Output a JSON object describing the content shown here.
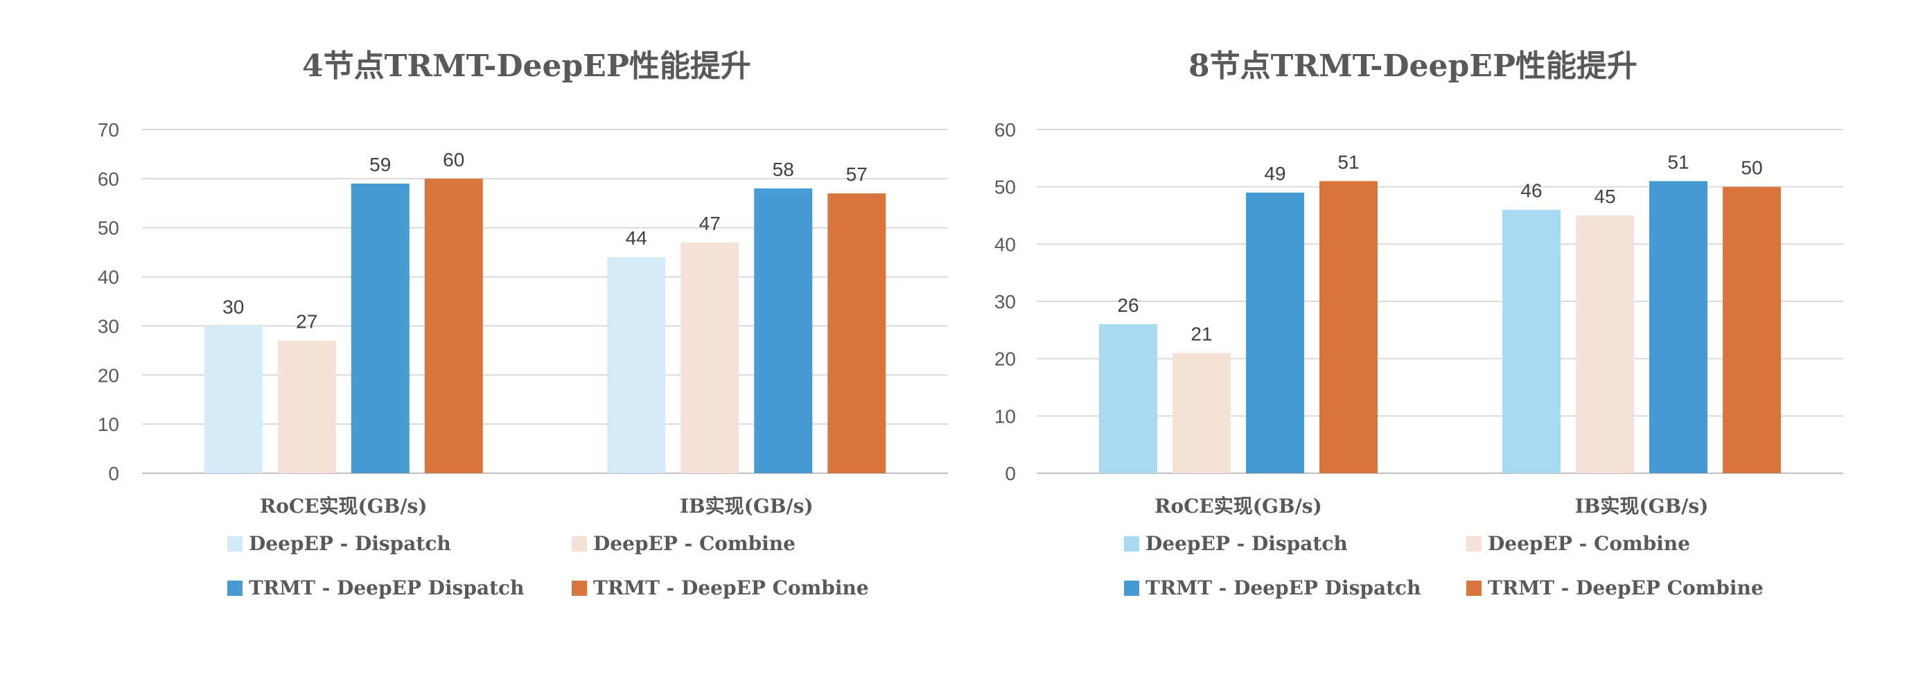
{
  "chart_data": [
    {
      "type": "bar",
      "title": "4节点TRMT-DeepEP性能提升",
      "xlabel": "",
      "ylabel": "",
      "ylim": [
        0,
        70
      ],
      "yticks": [
        0,
        10,
        20,
        30,
        40,
        50,
        60,
        70
      ],
      "grid": true,
      "legend_position": "bottom",
      "categories": [
        "RoCE实现(GB/s)",
        "IB实现(GB/s)"
      ],
      "series": [
        {
          "name": "DeepEP - Dispatch",
          "color": "#d3ebf7",
          "values": [
            30,
            44
          ]
        },
        {
          "name": "DeepEP - Combine",
          "color": "#f6e1d7",
          "values": [
            27,
            47
          ]
        },
        {
          "name": "TRMT - DeepEP Dispatch",
          "color": "#459bd2",
          "values": [
            59,
            58
          ]
        },
        {
          "name": "TRMT - DeepEP Combine",
          "color": "#d8763e",
          "values": [
            60,
            57
          ]
        }
      ]
    },
    {
      "type": "bar",
      "title": "8节点TRMT-DeepEP性能提升",
      "xlabel": "",
      "ylabel": "",
      "ylim": [
        0,
        60
      ],
      "yticks": [
        0,
        10,
        20,
        30,
        40,
        50,
        60
      ],
      "grid": true,
      "legend_position": "bottom",
      "categories": [
        "RoCE实现(GB/s)",
        "IB实现(GB/s)"
      ],
      "series": [
        {
          "name": "DeepEP - Dispatch",
          "color": "#a9daf4",
          "values": [
            26,
            46
          ]
        },
        {
          "name": "DeepEP - Combine",
          "color": "#f6e1d7",
          "values": [
            21,
            45
          ]
        },
        {
          "name": "TRMT - DeepEP Dispatch",
          "color": "#459bd2",
          "values": [
            49,
            51
          ]
        },
        {
          "name": "TRMT - DeepEP Combine",
          "color": "#d8763e",
          "values": [
            51,
            50
          ]
        }
      ]
    }
  ]
}
